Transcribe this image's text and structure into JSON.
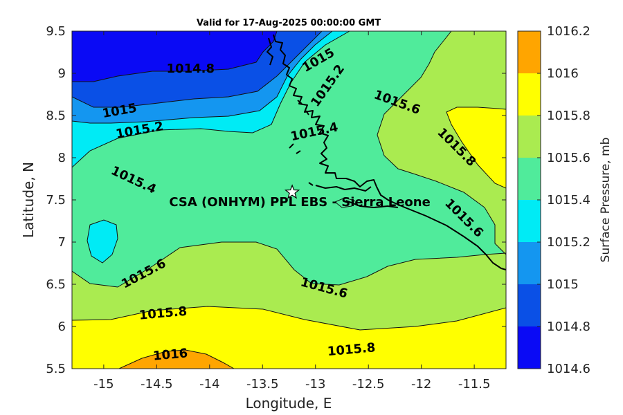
{
  "chart_data": {
    "type": "contour",
    "title": "Valid for 17-Aug-2025 00:00:00 GMT",
    "xlabel": "Longitude, E",
    "ylabel": "Latitude, N",
    "xlim": [
      -15.3,
      -11.2
    ],
    "ylim": [
      5.5,
      9.5
    ],
    "xticks": [
      -15,
      -14.5,
      -14,
      -13.5,
      -13,
      -12.5,
      -12,
      -11.5
    ],
    "xtick_labels": [
      "-15",
      "-14.5",
      "-14",
      "-13.5",
      "-13",
      "-12.5",
      "-12",
      "-11.5"
    ],
    "yticks": [
      5.5,
      6,
      6.5,
      7,
      7.5,
      8,
      8.5,
      9,
      9.5
    ],
    "ytick_labels": [
      "5.5",
      "6",
      "6.5",
      "7",
      "7.5",
      "8",
      "8.5",
      "9",
      "9.5"
    ],
    "colorbar": {
      "label": "Surface Pressure, mb",
      "levels": [
        1014.6,
        1014.8,
        1015,
        1015.2,
        1015.4,
        1015.6,
        1015.8,
        1016,
        1016.2
      ],
      "level_labels": [
        "1014.6",
        "1014.8",
        "1015",
        "1015.2",
        "1015.4",
        "1015.6",
        "1015.8",
        "1016",
        "1016.2"
      ],
      "colors": [
        "#0a0af5",
        "#0a50e6",
        "#1496f0",
        "#00ebf5",
        "#50eb9b",
        "#aaeb50",
        "#ffff00",
        "#ffa500",
        "#ff5a00"
      ]
    },
    "contour_labels": [
      {
        "text": "1014.8",
        "lon": -14.18,
        "lat": 9.05
      },
      {
        "text": "1015",
        "lon": -12.97,
        "lat": 9.15
      },
      {
        "text": "1015",
        "lon": -14.85,
        "lat": 8.55
      },
      {
        "text": "1015.2",
        "lon": -12.88,
        "lat": 8.85
      },
      {
        "text": "1015.2",
        "lon": -14.66,
        "lat": 8.32
      },
      {
        "text": "1015.4",
        "lon": -13.01,
        "lat": 8.3
      },
      {
        "text": "1015.4",
        "lon": -14.72,
        "lat": 7.73
      },
      {
        "text": "1015.6",
        "lon": -12.23,
        "lat": 8.65
      },
      {
        "text": "1015.8",
        "lon": -11.67,
        "lat": 8.12
      },
      {
        "text": "1015.6",
        "lon": -11.6,
        "lat": 7.28
      },
      {
        "text": "1015.6",
        "lon": -14.62,
        "lat": 6.62
      },
      {
        "text": "1015.6",
        "lon": -12.92,
        "lat": 6.45
      },
      {
        "text": "1015.8",
        "lon": -14.44,
        "lat": 6.15
      },
      {
        "text": "1015.8",
        "lon": -12.66,
        "lat": 5.72
      },
      {
        "text": "1016",
        "lon": -14.37,
        "lat": 5.66
      }
    ],
    "site": {
      "name": "CSA (ONHYM) PPL EBS  - Sierra Leone",
      "lon": -13.22,
      "lat": 7.59
    }
  }
}
